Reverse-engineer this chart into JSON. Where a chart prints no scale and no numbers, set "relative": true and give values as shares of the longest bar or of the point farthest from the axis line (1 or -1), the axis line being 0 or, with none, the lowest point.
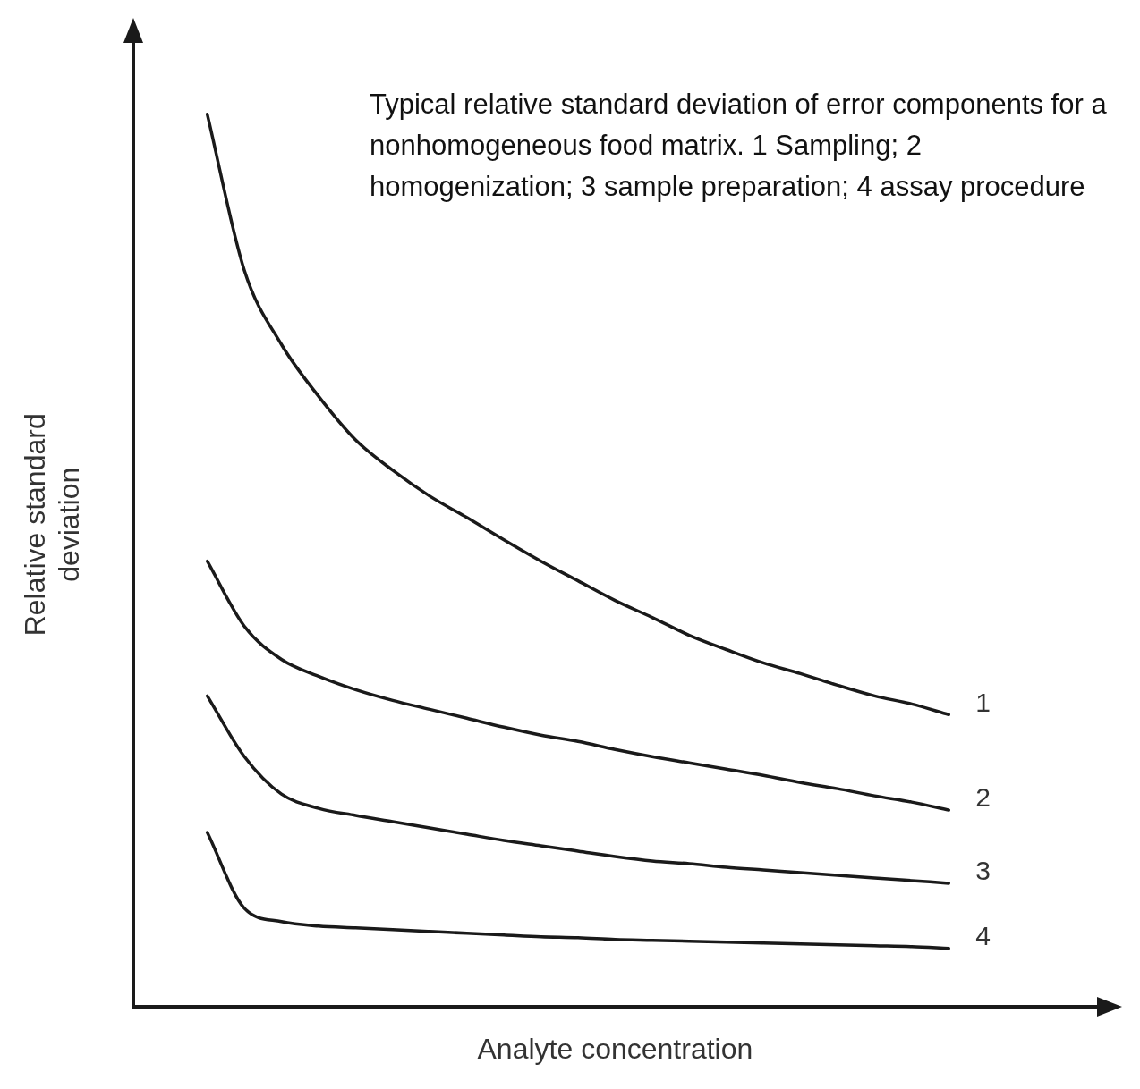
{
  "chart_data": {
    "type": "line",
    "relative": true,
    "xlabel": "Analyte concentration",
    "ylabel": "Relative standard\ndeviation",
    "annotations": [
      "Typical relative standard deviation of error components for a nonhomogeneous food matrix. 1 Sampling; 2 homogenization; 3 sample preparation; 4 assay procedure"
    ],
    "categories": [
      null,
      null,
      null,
      null,
      null,
      null,
      null,
      null,
      null,
      null,
      null,
      null,
      null,
      null,
      null,
      null,
      null,
      null,
      null,
      null,
      null,
      null,
      null,
      null,
      null,
      null,
      null
    ],
    "grid": false,
    "legend": false,
    "marker": "none",
    "line_style": "solid",
    "series": [
      {
        "name": "1",
        "color": "#1a1a1a",
        "values": [
          null,
          null,
          1,
          0.825,
          0.742,
          0.684,
          0.635,
          0.601,
          0.572,
          0.548,
          0.523,
          0.499,
          0.477,
          0.455,
          0.436,
          0.416,
          0.4,
          0.385,
          0.373,
          0.36,
          0.348,
          0.339,
          0.327,
          null,
          null,
          null,
          null
        ]
      },
      {
        "name": "2",
        "color": "#1a1a1a",
        "values": [
          null,
          null,
          0.499,
          0.426,
          0.389,
          0.37,
          0.355,
          0.343,
          0.333,
          0.323,
          0.313,
          0.304,
          0.297,
          0.288,
          0.28,
          0.273,
          0.266,
          0.259,
          0.251,
          0.244,
          0.236,
          0.229,
          0.22,
          null,
          null,
          null,
          null
        ]
      },
      {
        "name": "3",
        "color": "#1a1a1a",
        "values": [
          null,
          null,
          0.348,
          0.28,
          0.238,
          0.222,
          0.214,
          0.207,
          0.2,
          0.193,
          0.186,
          0.18,
          0.174,
          0.168,
          0.163,
          0.16,
          0.156,
          0.153,
          0.15,
          0.147,
          0.144,
          0.141,
          0.138,
          null,
          null,
          null,
          null
        ]
      },
      {
        "name": "4",
        "color": "#1a1a1a",
        "values": [
          null,
          null,
          0.195,
          0.11,
          0.095,
          0.09,
          0.088,
          0.086,
          0.084,
          0.082,
          0.08,
          0.078,
          0.077,
          0.075,
          0.074,
          0.073,
          0.072,
          0.071,
          0.07,
          0.069,
          0.068,
          0.067,
          0.065,
          null,
          null,
          null,
          null
        ]
      }
    ]
  }
}
